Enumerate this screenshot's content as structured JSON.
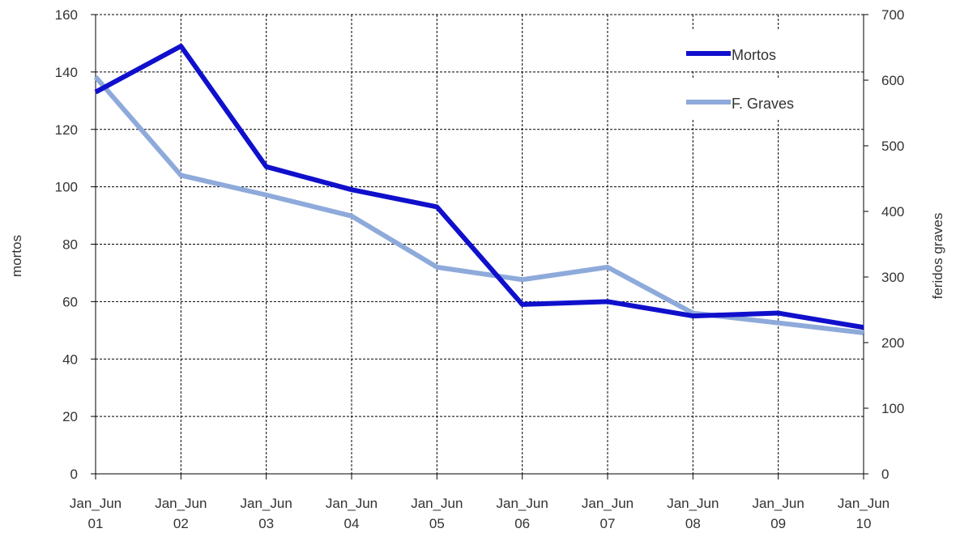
{
  "chart_data": {
    "type": "line",
    "categories": [
      "Jan_Jun 01",
      "Jan_Jun 02",
      "Jan_Jun 03",
      "Jan_Jun 04",
      "Jan_Jun 05",
      "Jan_Jun 06",
      "Jan_Jun 07",
      "Jan_Jun 08",
      "Jan_Jun 09",
      "Jan_Jun 10"
    ],
    "category_lines": [
      [
        "Jan_Jun",
        "01"
      ],
      [
        "Jan_Jun",
        "02"
      ],
      [
        "Jan_Jun",
        "03"
      ],
      [
        "Jan_Jun",
        "04"
      ],
      [
        "Jan_Jun",
        "05"
      ],
      [
        "Jan_Jun",
        "06"
      ],
      [
        "Jan_Jun",
        "07"
      ],
      [
        "Jan_Jun",
        "08"
      ],
      [
        "Jan_Jun",
        "09"
      ],
      [
        "Jan_Jun",
        "10"
      ]
    ],
    "series": [
      {
        "name": "Mortos",
        "axis": "left",
        "color": "#1010cc",
        "values": [
          133,
          149,
          107,
          99,
          93,
          59,
          60,
          55,
          56,
          51
        ]
      },
      {
        "name": "F. Graves",
        "axis": "right",
        "color": "#8eaadb",
        "values": [
          605,
          455,
          425,
          393,
          315,
          296,
          315,
          245,
          230,
          215
        ]
      }
    ],
    "y_left": {
      "label": "mortos",
      "min": 0,
      "max": 160,
      "ticks": [
        "0",
        "20",
        "40",
        "60",
        "80",
        "100",
        "120",
        "140",
        "160"
      ]
    },
    "y_right": {
      "label": "feridos graves",
      "min": 0,
      "max": 700,
      "ticks": [
        "0",
        "100",
        "200",
        "300",
        "400",
        "500",
        "600",
        "700"
      ]
    },
    "grid": true,
    "legend_position": "top-right"
  }
}
